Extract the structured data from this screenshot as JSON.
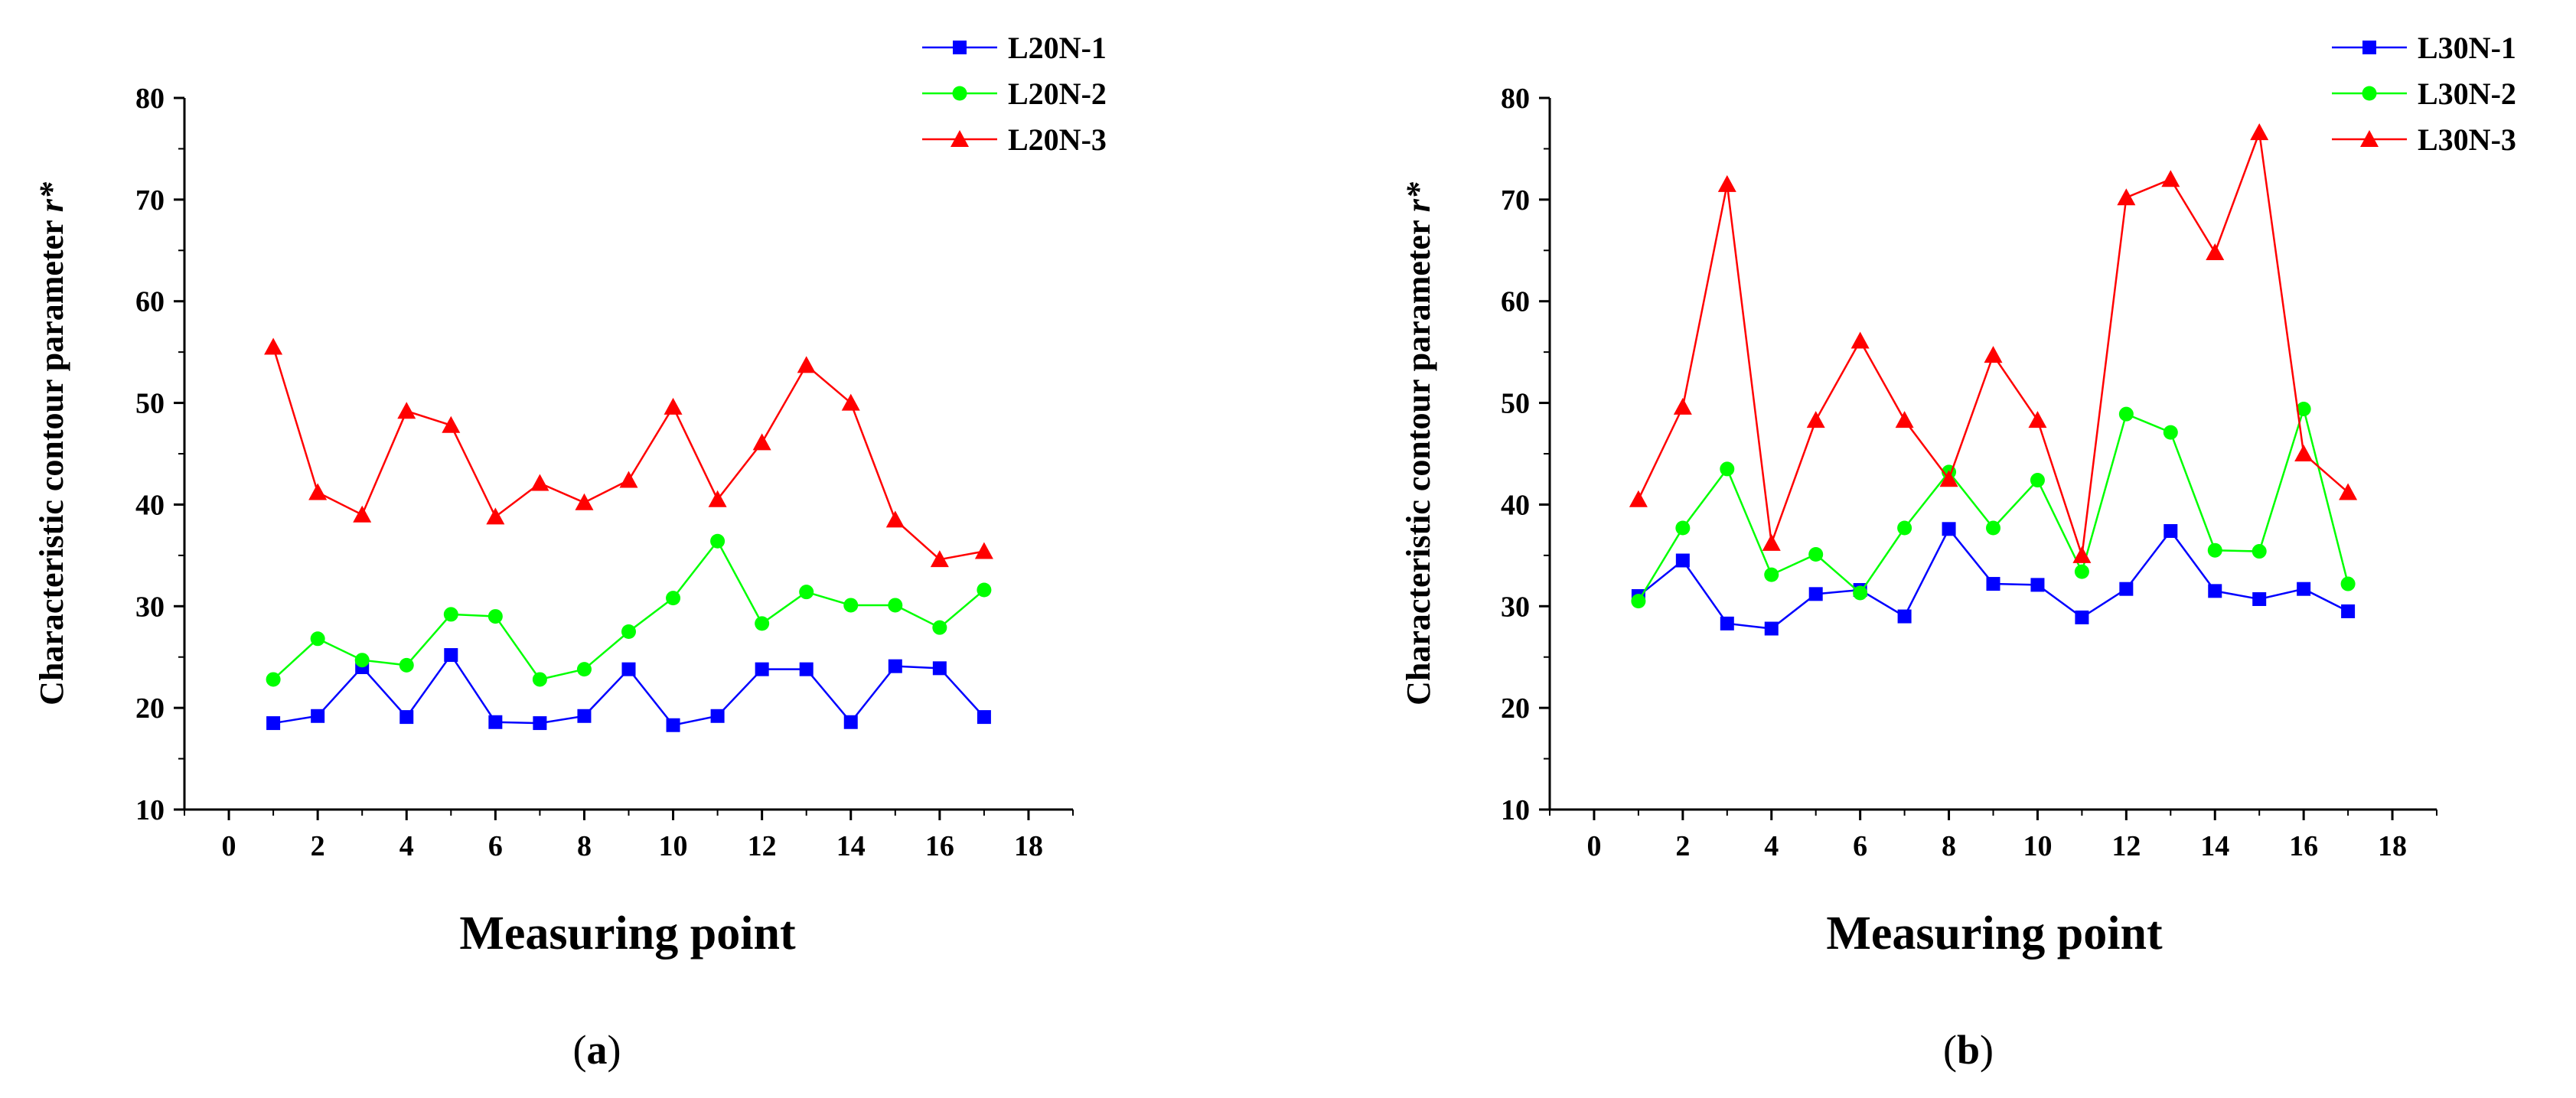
{
  "chart_data": [
    {
      "type": "line",
      "panel_label": "a",
      "title": "",
      "xlabel": "Measuring point",
      "ylabel": "Characteristic contour parameter",
      "ylabel_symbol": "r*",
      "xlim": [
        -1,
        19
      ],
      "ylim": [
        10,
        80
      ],
      "xticks": [
        0,
        2,
        4,
        6,
        8,
        10,
        12,
        14,
        16,
        18
      ],
      "yticks": [
        10,
        20,
        30,
        40,
        50,
        60,
        70,
        80
      ],
      "legend_position": "top-right",
      "x": [
        1,
        2,
        3,
        4,
        5,
        6,
        7,
        8,
        9,
        10,
        11,
        12,
        13,
        14,
        15,
        16,
        17
      ],
      "series": [
        {
          "name": "L20N-1",
          "color": "#0000ff",
          "marker": "square",
          "values": [
            18.5,
            19.2,
            24.0,
            19.1,
            25.2,
            18.6,
            18.5,
            19.2,
            23.8,
            18.3,
            19.2,
            23.8,
            23.8,
            18.6,
            24.1,
            23.9,
            19.1
          ]
        },
        {
          "name": "L20N-2",
          "color": "#00ff00",
          "marker": "circle",
          "values": [
            22.8,
            26.8,
            24.7,
            24.2,
            29.2,
            29.0,
            22.8,
            23.8,
            27.5,
            30.8,
            36.4,
            28.3,
            31.4,
            30.1,
            30.1,
            27.9,
            31.6
          ]
        },
        {
          "name": "L20N-3",
          "color": "#ff0000",
          "marker": "triangle",
          "values": [
            55.5,
            41.2,
            39.0,
            49.2,
            47.8,
            38.8,
            42.1,
            40.2,
            42.4,
            49.6,
            40.5,
            46.1,
            53.7,
            50.0,
            38.5,
            34.6,
            35.4
          ]
        }
      ]
    },
    {
      "type": "line",
      "panel_label": "b",
      "title": "",
      "xlabel": "Measuring point",
      "ylabel": "Characteristic contour parameter",
      "ylabel_symbol": "r*",
      "xlim": [
        -1,
        19
      ],
      "ylim": [
        10,
        80
      ],
      "xticks": [
        0,
        2,
        4,
        6,
        8,
        10,
        12,
        14,
        16,
        18
      ],
      "yticks": [
        10,
        20,
        30,
        40,
        50,
        60,
        70,
        80
      ],
      "legend_position": "top-right",
      "x": [
        1,
        2,
        3,
        4,
        5,
        6,
        7,
        8,
        9,
        10,
        11,
        12,
        13,
        14,
        15,
        16,
        17
      ],
      "series": [
        {
          "name": "L30N-1",
          "color": "#0000ff",
          "marker": "square",
          "values": [
            31.0,
            34.5,
            28.3,
            27.8,
            31.2,
            31.6,
            29.0,
            37.6,
            32.2,
            32.1,
            28.9,
            31.7,
            37.4,
            31.5,
            30.7,
            31.7,
            29.5
          ]
        },
        {
          "name": "L30N-2",
          "color": "#00ff00",
          "marker": "circle",
          "values": [
            30.5,
            37.7,
            43.5,
            33.1,
            35.1,
            31.3,
            37.7,
            43.2,
            37.7,
            42.4,
            33.4,
            48.9,
            47.1,
            35.5,
            35.4,
            49.4,
            32.2
          ]
        },
        {
          "name": "L30N-3",
          "color": "#ff0000",
          "marker": "triangle",
          "values": [
            40.5,
            49.6,
            71.5,
            36.2,
            48.3,
            56.1,
            48.3,
            42.5,
            54.7,
            48.3,
            35.0,
            70.2,
            72.0,
            64.8,
            76.6,
            45.0,
            41.2
          ]
        }
      ]
    }
  ]
}
